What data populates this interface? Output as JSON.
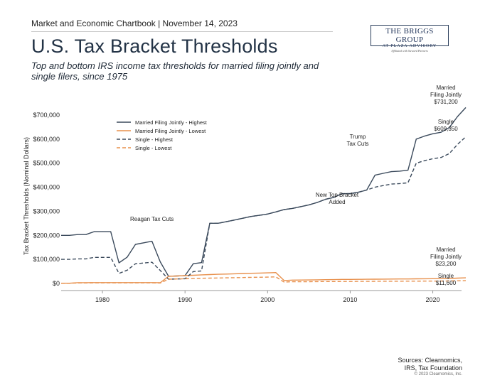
{
  "header": {
    "top_line": "Market and Economic Chartbook | November 14, 2023",
    "title": "U.S. Tax Bracket Thresholds",
    "subtitle": "Top and bottom IRS income tax thresholds for married filing jointly and single filers, since 1975"
  },
  "logo": {
    "line1": "THE BRIGGS GROUP",
    "line2": "AT PLAZA ADVISORY",
    "line3": "Affiliated with Steward Partners"
  },
  "footer": {
    "source_line1": "Sources: Clearnomics,",
    "source_line2": "IRS, Tax Foundation",
    "copyright": "© 2023 Clearnomics, Inc."
  },
  "colors": {
    "navy": "#3b4a5c",
    "orange": "#e8904c",
    "axis": "#999999",
    "text": "#222222"
  },
  "chart_data": {
    "type": "line",
    "title": "U.S. Tax Bracket Thresholds",
    "xlabel": "",
    "ylabel": "Tax Bracket Thresholds (Nominal Dollars)",
    "xlim": [
      1975,
      2024
    ],
    "ylim": [
      0,
      750000
    ],
    "x_ticks": [
      1980,
      1990,
      2000,
      2010,
      2020
    ],
    "y_ticks": [
      0,
      100000,
      200000,
      300000,
      400000,
      500000,
      600000,
      700000
    ],
    "y_tick_labels": [
      "$0",
      "$100,000",
      "$200,000",
      "$300,000",
      "$400,000",
      "$500,000",
      "$600,000",
      "$700,000"
    ],
    "series": [
      {
        "name": "Married Filing Jointly - Highest",
        "color": "#3b4a5c",
        "dash": "solid",
        "points": [
          [
            1975,
            200000
          ],
          [
            1976,
            200000
          ],
          [
            1977,
            203200
          ],
          [
            1978,
            203200
          ],
          [
            1979,
            215400
          ],
          [
            1980,
            215400
          ],
          [
            1981,
            215400
          ],
          [
            1982,
            85600
          ],
          [
            1983,
            109400
          ],
          [
            1984,
            162400
          ],
          [
            1985,
            169020
          ],
          [
            1986,
            175250
          ],
          [
            1987,
            90000
          ],
          [
            1988,
            29750
          ],
          [
            1989,
            30950
          ],
          [
            1990,
            32450
          ],
          [
            1991,
            82150
          ],
          [
            1992,
            86500
          ],
          [
            1993,
            250000
          ],
          [
            1994,
            250000
          ],
          [
            1995,
            256500
          ],
          [
            1996,
            263750
          ],
          [
            1997,
            271050
          ],
          [
            1998,
            278450
          ],
          [
            1999,
            283150
          ],
          [
            2000,
            288350
          ],
          [
            2001,
            297350
          ],
          [
            2002,
            307050
          ],
          [
            2003,
            311950
          ],
          [
            2004,
            319100
          ],
          [
            2005,
            326450
          ],
          [
            2006,
            336550
          ],
          [
            2007,
            349700
          ],
          [
            2008,
            357700
          ],
          [
            2009,
            372950
          ],
          [
            2010,
            373650
          ],
          [
            2011,
            379150
          ],
          [
            2012,
            388350
          ],
          [
            2013,
            450000
          ],
          [
            2014,
            457600
          ],
          [
            2015,
            464850
          ],
          [
            2016,
            466950
          ],
          [
            2017,
            470700
          ],
          [
            2018,
            600000
          ],
          [
            2019,
            612350
          ],
          [
            2020,
            622050
          ],
          [
            2021,
            628300
          ],
          [
            2022,
            647850
          ],
          [
            2023,
            693750
          ],
          [
            2024,
            731200
          ]
        ]
      },
      {
        "name": "Married Filing Jointly - Lowest",
        "color": "#e8904c",
        "dash": "solid",
        "points": [
          [
            1975,
            1000
          ],
          [
            1976,
            1000
          ],
          [
            1977,
            3200
          ],
          [
            1978,
            3200
          ],
          [
            1979,
            3400
          ],
          [
            1980,
            3400
          ],
          [
            1981,
            3400
          ],
          [
            1982,
            3400
          ],
          [
            1983,
            3400
          ],
          [
            1984,
            3400
          ],
          [
            1985,
            3540
          ],
          [
            1986,
            3670
          ],
          [
            1987,
            3000
          ],
          [
            1988,
            29750
          ],
          [
            1989,
            30950
          ],
          [
            1990,
            32450
          ],
          [
            1991,
            34000
          ],
          [
            1992,
            35800
          ],
          [
            1993,
            36900
          ],
          [
            1994,
            38000
          ],
          [
            1995,
            39000
          ],
          [
            1996,
            40100
          ],
          [
            1997,
            41200
          ],
          [
            1998,
            42350
          ],
          [
            1999,
            43050
          ],
          [
            2000,
            43850
          ],
          [
            2001,
            45200
          ],
          [
            2002,
            12000
          ],
          [
            2003,
            14000
          ],
          [
            2004,
            14300
          ],
          [
            2005,
            14600
          ],
          [
            2006,
            15100
          ],
          [
            2007,
            15650
          ],
          [
            2008,
            16050
          ],
          [
            2009,
            16700
          ],
          [
            2010,
            16750
          ],
          [
            2011,
            17000
          ],
          [
            2012,
            17400
          ],
          [
            2013,
            17850
          ],
          [
            2014,
            18150
          ],
          [
            2015,
            18450
          ],
          [
            2016,
            18550
          ],
          [
            2017,
            18650
          ],
          [
            2018,
            19050
          ],
          [
            2019,
            19400
          ],
          [
            2020,
            19750
          ],
          [
            2021,
            19900
          ],
          [
            2022,
            20550
          ],
          [
            2023,
            22000
          ],
          [
            2024,
            23200
          ]
        ]
      },
      {
        "name": "Single - Highest",
        "color": "#3b4a5c",
        "dash": "dashed",
        "points": [
          [
            1975,
            100000
          ],
          [
            1976,
            100000
          ],
          [
            1977,
            102200
          ],
          [
            1978,
            102200
          ],
          [
            1979,
            108300
          ],
          [
            1980,
            108300
          ],
          [
            1981,
            108300
          ],
          [
            1982,
            41500
          ],
          [
            1983,
            55300
          ],
          [
            1984,
            81800
          ],
          [
            1985,
            85130
          ],
          [
            1986,
            88270
          ],
          [
            1987,
            54000
          ],
          [
            1988,
            17850
          ],
          [
            1989,
            18550
          ],
          [
            1990,
            19450
          ],
          [
            1991,
            49300
          ],
          [
            1992,
            51900
          ],
          [
            1993,
            250000
          ],
          [
            1994,
            250000
          ],
          [
            1995,
            256500
          ],
          [
            1996,
            263750
          ],
          [
            1997,
            271050
          ],
          [
            1998,
            278450
          ],
          [
            1999,
            283150
          ],
          [
            2000,
            288350
          ],
          [
            2001,
            297350
          ],
          [
            2002,
            307050
          ],
          [
            2003,
            311950
          ],
          [
            2004,
            319100
          ],
          [
            2005,
            326450
          ],
          [
            2006,
            336550
          ],
          [
            2007,
            349700
          ],
          [
            2008,
            357700
          ],
          [
            2009,
            372950
          ],
          [
            2010,
            373650
          ],
          [
            2011,
            379150
          ],
          [
            2012,
            388350
          ],
          [
            2013,
            400000
          ],
          [
            2014,
            406750
          ],
          [
            2015,
            413200
          ],
          [
            2016,
            415050
          ],
          [
            2017,
            418400
          ],
          [
            2018,
            500000
          ],
          [
            2019,
            510300
          ],
          [
            2020,
            518400
          ],
          [
            2021,
            523600
          ],
          [
            2022,
            539900
          ],
          [
            2023,
            578125
          ],
          [
            2024,
            609350
          ]
        ]
      },
      {
        "name": "Single - Lowest",
        "color": "#e8904c",
        "dash": "dashed",
        "points": [
          [
            1975,
            500
          ],
          [
            1976,
            500
          ],
          [
            1977,
            2200
          ],
          [
            1978,
            2200
          ],
          [
            1979,
            2300
          ],
          [
            1980,
            2300
          ],
          [
            1981,
            2300
          ],
          [
            1982,
            2300
          ],
          [
            1983,
            2300
          ],
          [
            1984,
            2300
          ],
          [
            1985,
            2390
          ],
          [
            1986,
            2480
          ],
          [
            1987,
            1800
          ],
          [
            1988,
            17850
          ],
          [
            1989,
            18550
          ],
          [
            1990,
            19450
          ],
          [
            1991,
            20350
          ],
          [
            1992,
            21450
          ],
          [
            1993,
            22100
          ],
          [
            1994,
            22750
          ],
          [
            1995,
            23350
          ],
          [
            1996,
            24000
          ],
          [
            1997,
            24650
          ],
          [
            1998,
            25350
          ],
          [
            1999,
            25750
          ],
          [
            2000,
            26250
          ],
          [
            2001,
            27050
          ],
          [
            2002,
            6000
          ],
          [
            2003,
            7000
          ],
          [
            2004,
            7150
          ],
          [
            2005,
            7300
          ],
          [
            2006,
            7550
          ],
          [
            2007,
            7825
          ],
          [
            2008,
            8025
          ],
          [
            2009,
            8350
          ],
          [
            2010,
            8375
          ],
          [
            2011,
            8500
          ],
          [
            2012,
            8700
          ],
          [
            2013,
            8925
          ],
          [
            2014,
            9075
          ],
          [
            2015,
            9225
          ],
          [
            2016,
            9275
          ],
          [
            2017,
            9325
          ],
          [
            2018,
            9525
          ],
          [
            2019,
            9700
          ],
          [
            2020,
            9875
          ],
          [
            2021,
            9950
          ],
          [
            2022,
            10275
          ],
          [
            2023,
            11000
          ],
          [
            2024,
            11600
          ]
        ]
      }
    ],
    "annotations": [
      {
        "id": "reagan",
        "lines": [
          "Reagan Tax Cuts"
        ],
        "x": 1987,
        "y": 240000
      },
      {
        "id": "new-top",
        "lines": [
          "New Top Bracket",
          "Added"
        ],
        "x": 2012,
        "y": 325000
      },
      {
        "id": "trump",
        "lines": [
          "Trump",
          "Tax Cuts"
        ],
        "x": 2015,
        "y": 550000
      },
      {
        "id": "mfj-high",
        "lines": [
          "Married",
          "Filing Jointly",
          "$731,200"
        ],
        "x": 2027,
        "y": 743000
      },
      {
        "id": "single-high",
        "lines": [
          "Single",
          "$609,350"
        ],
        "x": 2027,
        "y": 618000
      },
      {
        "id": "mfj-low",
        "lines": [
          "Married",
          "Filing Jointly",
          "$23,200"
        ],
        "x": 2027,
        "y": 113000
      },
      {
        "id": "single-low",
        "lines": [
          "Single",
          "$11,600"
        ],
        "x": 2027,
        "y": 28000
      }
    ],
    "legend": {
      "position": "upper-left",
      "entries": [
        {
          "label": "Married Filing Jointly - Highest",
          "color": "#3b4a5c",
          "dash": "solid"
        },
        {
          "label": "Married Filing Jointly - Lowest",
          "color": "#e8904c",
          "dash": "solid"
        },
        {
          "label": "Single - Highest",
          "color": "#3b4a5c",
          "dash": "dashed"
        },
        {
          "label": "Single - Lowest",
          "color": "#e8904c",
          "dash": "dashed"
        }
      ]
    }
  }
}
